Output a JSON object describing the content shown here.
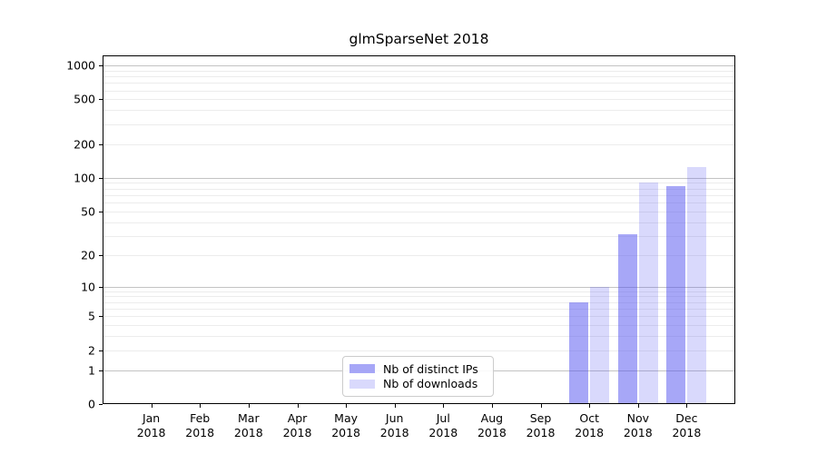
{
  "title": "glmSparseNet 2018",
  "chart_data": {
    "type": "bar",
    "title": "glmSparseNet 2018",
    "scale": "log1p",
    "grid": true,
    "legend_position": "lower center",
    "categories": [
      "Jan",
      "Feb",
      "Mar",
      "Apr",
      "May",
      "Jun",
      "Jul",
      "Aug",
      "Sep",
      "Oct",
      "Nov",
      "Dec"
    ],
    "year": "2018",
    "series": [
      {
        "name": "Nb of distinct IPs",
        "color": "rgba(80,80,240,0.5)",
        "values": [
          0,
          0,
          0,
          0,
          0,
          0,
          0,
          0,
          0,
          7,
          31,
          85
        ]
      },
      {
        "name": "Nb of downloads",
        "color": "rgba(80,80,240,0.22)",
        "values": [
          0,
          0,
          0,
          0,
          0,
          0,
          0,
          0,
          0,
          10,
          90,
          125
        ]
      }
    ],
    "y_ticks": [
      0,
      1,
      2,
      5,
      10,
      20,
      50,
      100,
      200,
      500,
      1000
    ],
    "ylim": [
      0,
      1250
    ],
    "colors": {
      "grid_major": "#c3c3c3",
      "grid_minor": "#ececec",
      "axis": "#000000",
      "legend_border": "#cccccc"
    }
  }
}
